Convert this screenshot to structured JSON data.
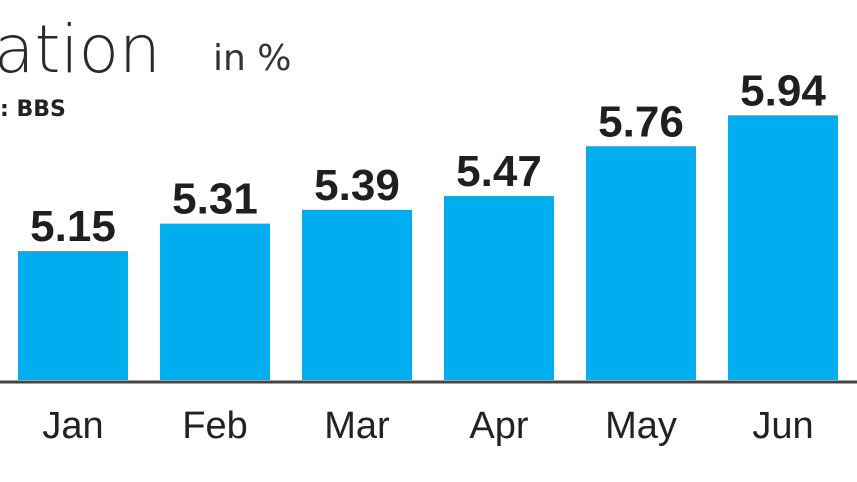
{
  "chart_data": {
    "type": "bar",
    "title": "ation",
    "subtitle": "in %",
    "source": ": BBS",
    "categories": [
      "Jan",
      "Feb",
      "Mar",
      "Apr",
      "May",
      "Jun"
    ],
    "values": [
      5.15,
      5.31,
      5.39,
      5.47,
      5.76,
      5.94
    ],
    "color": "#00aeef",
    "ylim": [
      4.4,
      6.0
    ]
  }
}
